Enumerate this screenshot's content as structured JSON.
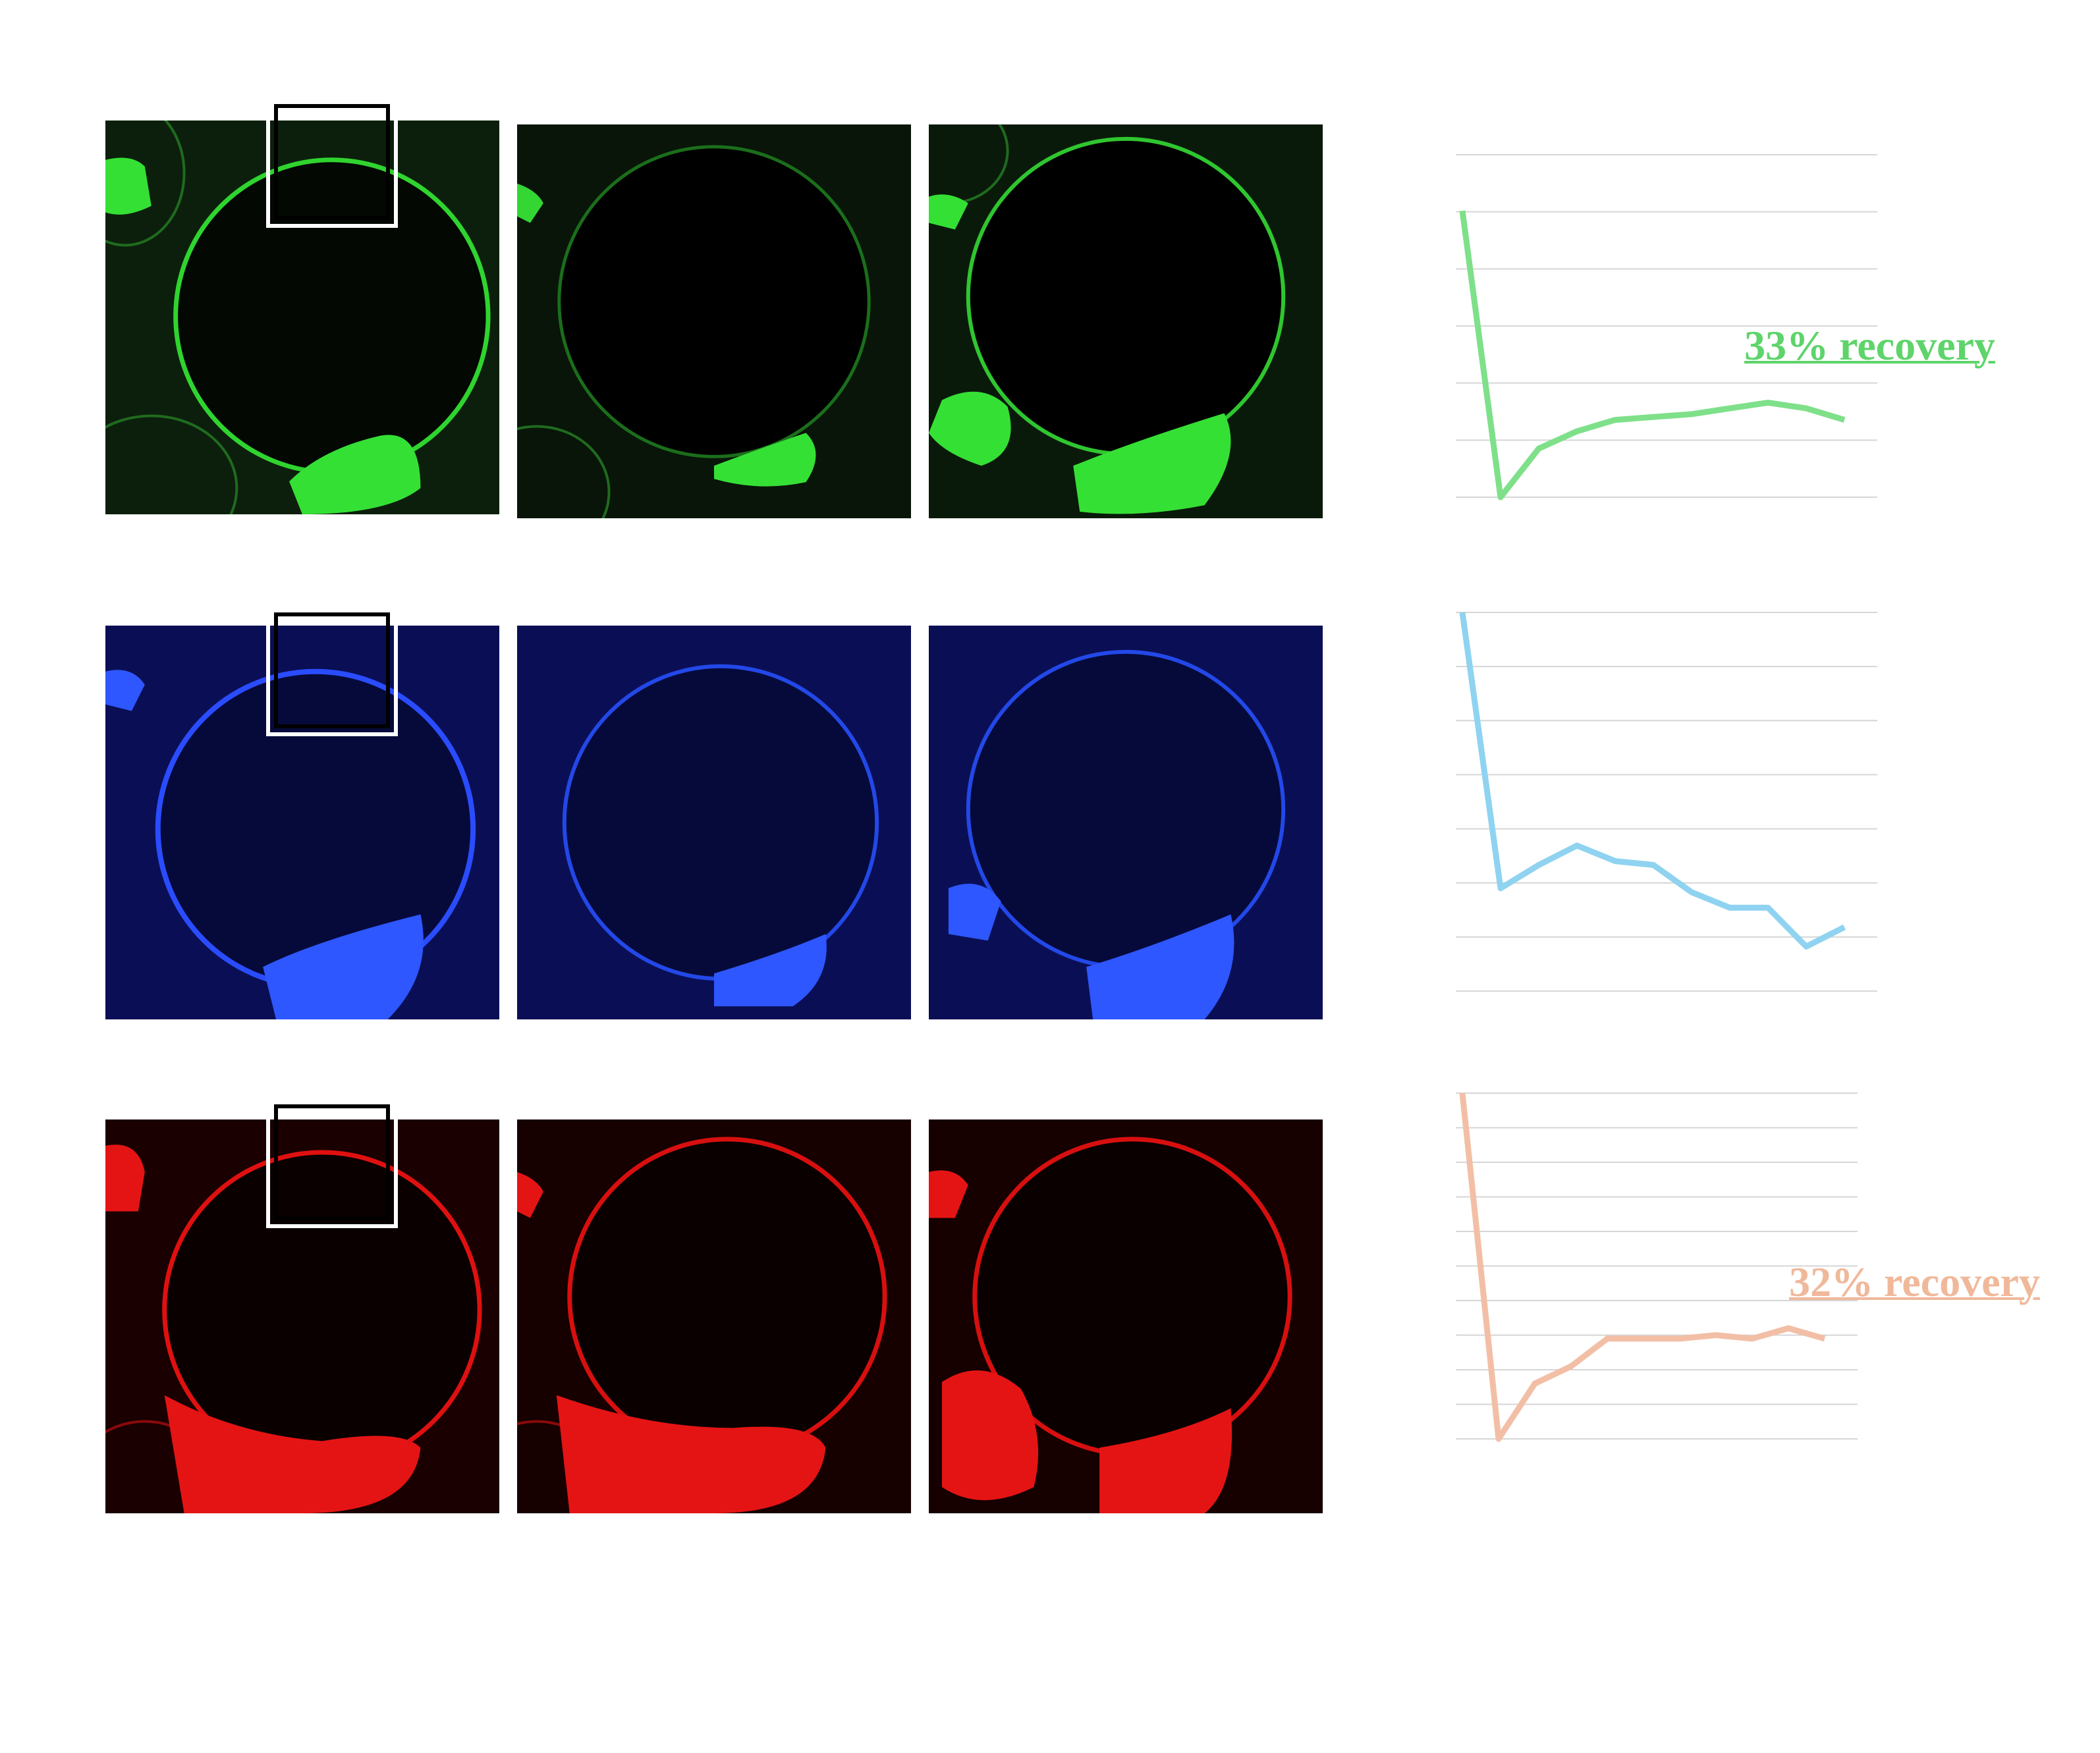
{
  "figure": {
    "rows": [
      {
        "channel": "green",
        "image_color": "#2bdc2b",
        "plot_color": "#7fe08a",
        "recovery_label": "33% recovery",
        "plot_values": [
          1.0,
          0.0,
          0.17,
          0.23,
          0.27,
          0.28,
          0.29,
          0.31,
          0.33,
          0.31,
          0.27
        ]
      },
      {
        "channel": "blue",
        "image_color": "#1e3cff",
        "plot_color": "#8fd3f0",
        "recovery_label": "",
        "plot_values": [
          1.0,
          0.29,
          0.35,
          0.4,
          0.36,
          0.35,
          0.28,
          0.24,
          0.24,
          0.14,
          0.19
        ]
      },
      {
        "channel": "red",
        "image_color": "#e01010",
        "plot_color": "#f2bfa6",
        "recovery_label": "32% recovery",
        "plot_values": [
          1.0,
          0.0,
          0.16,
          0.21,
          0.29,
          0.29,
          0.29,
          0.3,
          0.29,
          0.32,
          0.29
        ]
      }
    ]
  }
}
